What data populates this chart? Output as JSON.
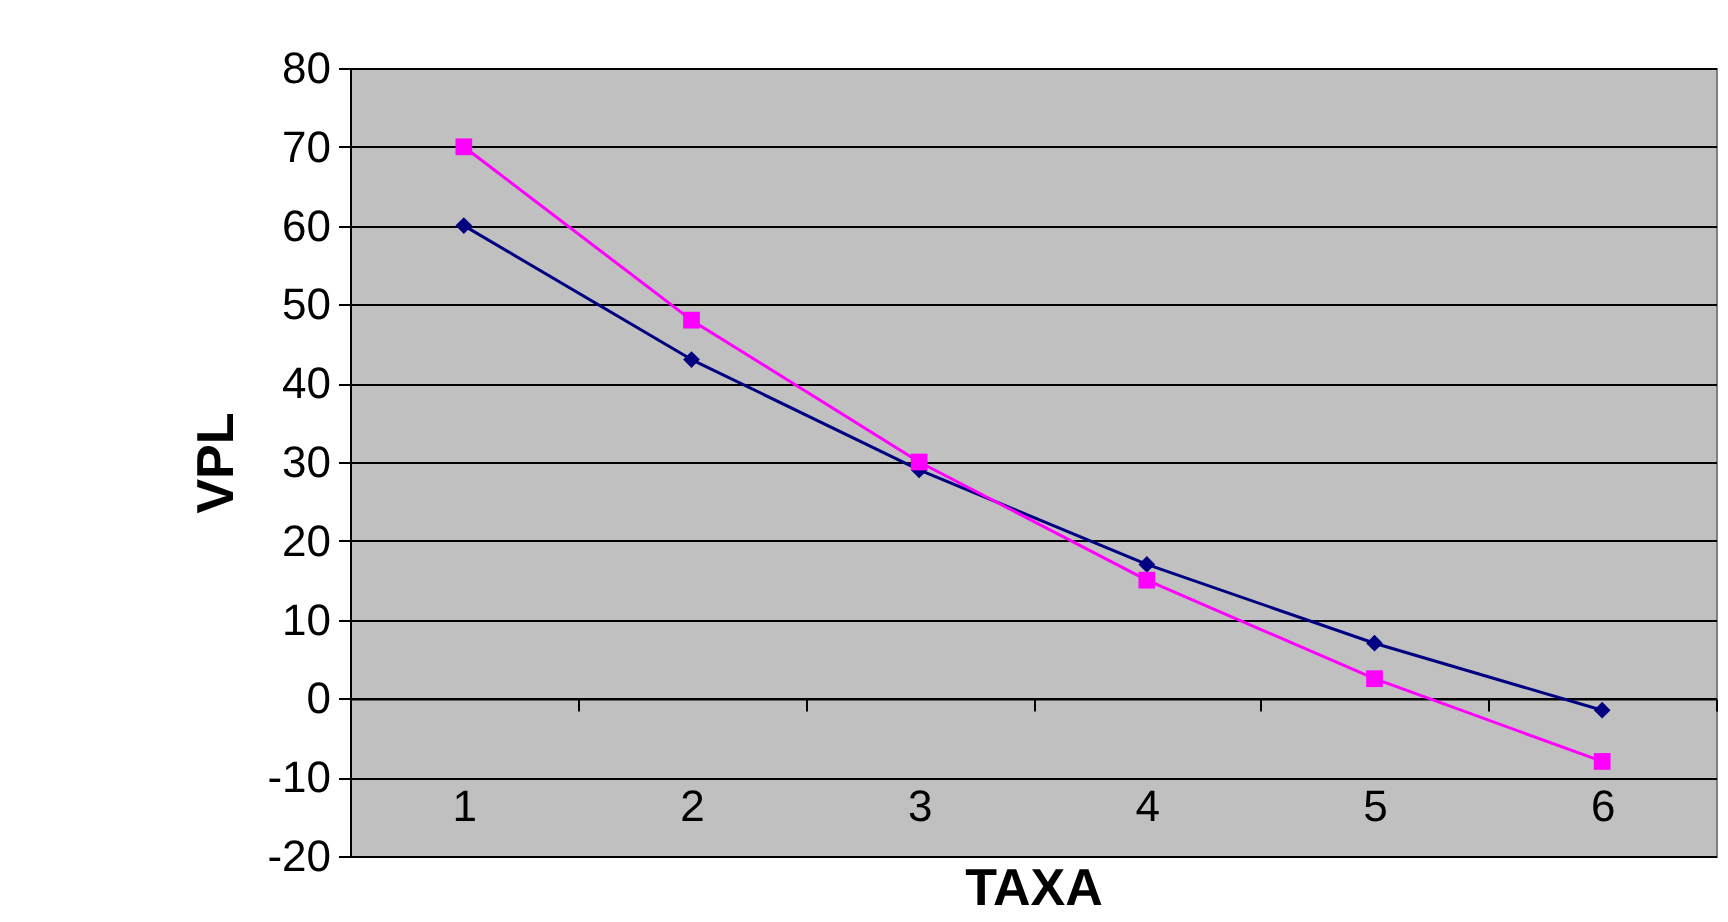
{
  "chart_data": {
    "type": "line",
    "xlabel": "TAXA",
    "ylabel": "VPL",
    "categories": [
      "1",
      "2",
      "3",
      "4",
      "5",
      "6"
    ],
    "series": [
      {
        "color": "#000080",
        "marker": "diamond",
        "values": [
          60,
          43,
          29,
          17,
          7,
          -1.5
        ]
      },
      {
        "color": "#ff00ff",
        "marker": "square",
        "values": [
          70,
          48,
          30,
          15,
          2.5,
          -8
        ]
      }
    ],
    "ylim": [
      -20,
      80
    ],
    "yticks": [
      -20,
      -10,
      0,
      10,
      20,
      30,
      40,
      50,
      60,
      70,
      80
    ],
    "grid": "y"
  }
}
